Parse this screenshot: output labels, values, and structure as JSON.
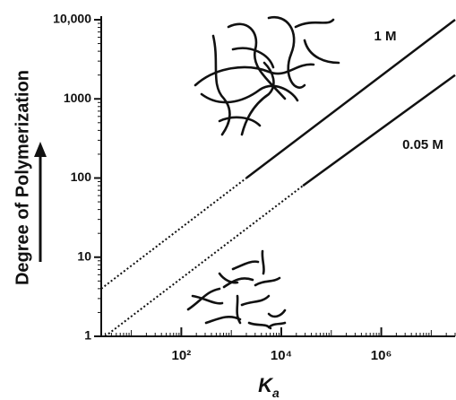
{
  "chart_data": {
    "type": "line",
    "ylabel": "Degree of Polymerization",
    "xlabel": {
      "main": "K",
      "sub": "a"
    },
    "log_x": true,
    "log_y": true,
    "xlim": [
      2.5,
      30000000
    ],
    "ylim": [
      1,
      10000
    ],
    "xticks": [
      {
        "value": 100,
        "label": "10²"
      },
      {
        "value": 10000,
        "label": "10⁴"
      },
      {
        "value": 1000000,
        "label": "10⁶"
      }
    ],
    "yticks": [
      1,
      10,
      100,
      1000,
      {
        "value": 10000,
        "label": "10,000"
      }
    ],
    "lines": [
      {
        "label": "1 M",
        "color": "#111111",
        "dotted": {
          "x": [
            2.5,
            2000
          ],
          "values": [
            4,
            100
          ]
        },
        "solid": {
          "x": [
            2000,
            30000000
          ],
          "values": [
            100,
            10000
          ]
        }
      },
      {
        "label": "0.05 M",
        "color": "#111111",
        "dotted": {
          "x": [
            3,
            27000
          ],
          "values": [
            1,
            80
          ]
        },
        "solid": {
          "x": [
            27000,
            30000000
          ],
          "values": [
            80,
            2000
          ]
        }
      }
    ]
  }
}
